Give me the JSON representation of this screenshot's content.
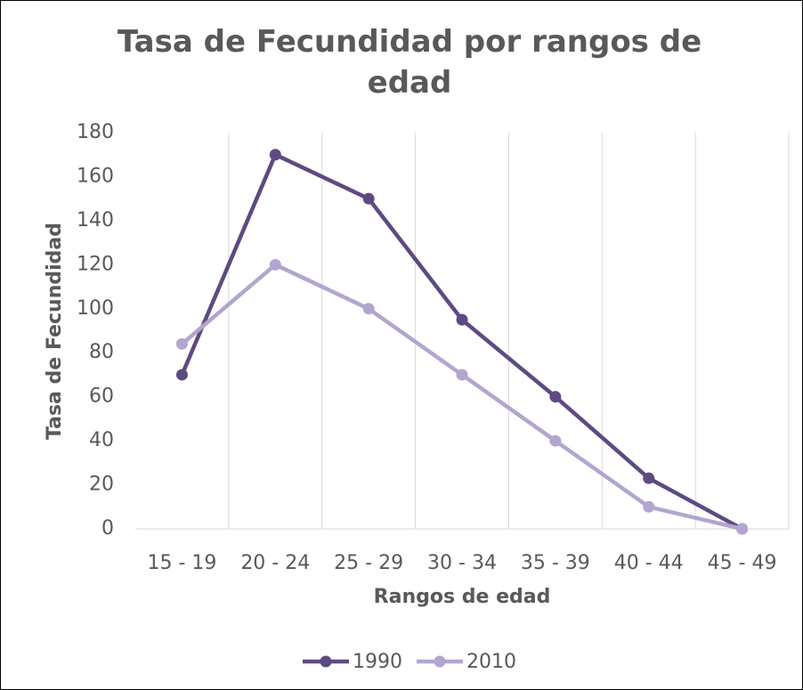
{
  "chart_data": {
    "type": "line",
    "title": "Tasa de Fecundidad por rangos de edad",
    "x_label": "Rangos de edad",
    "y_label": "Tasa de Fecundidad",
    "categories": [
      "15 - 19",
      "20 - 24",
      "25 - 29",
      "30 - 34",
      "35 - 39",
      "40 - 44",
      "45 - 49"
    ],
    "series": [
      {
        "name": "1990",
        "color": "#5e4a82",
        "values": [
          70,
          170,
          150,
          95,
          60,
          23,
          0
        ]
      },
      {
        "name": "2010",
        "color": "#b3a5cf",
        "values": [
          84,
          120,
          100,
          70,
          40,
          10,
          0
        ]
      }
    ],
    "ylim": [
      0,
      180
    ],
    "yticks": [
      0,
      20,
      40,
      60,
      80,
      100,
      120,
      140,
      160,
      180
    ],
    "grid": true,
    "legend": "bottom"
  }
}
